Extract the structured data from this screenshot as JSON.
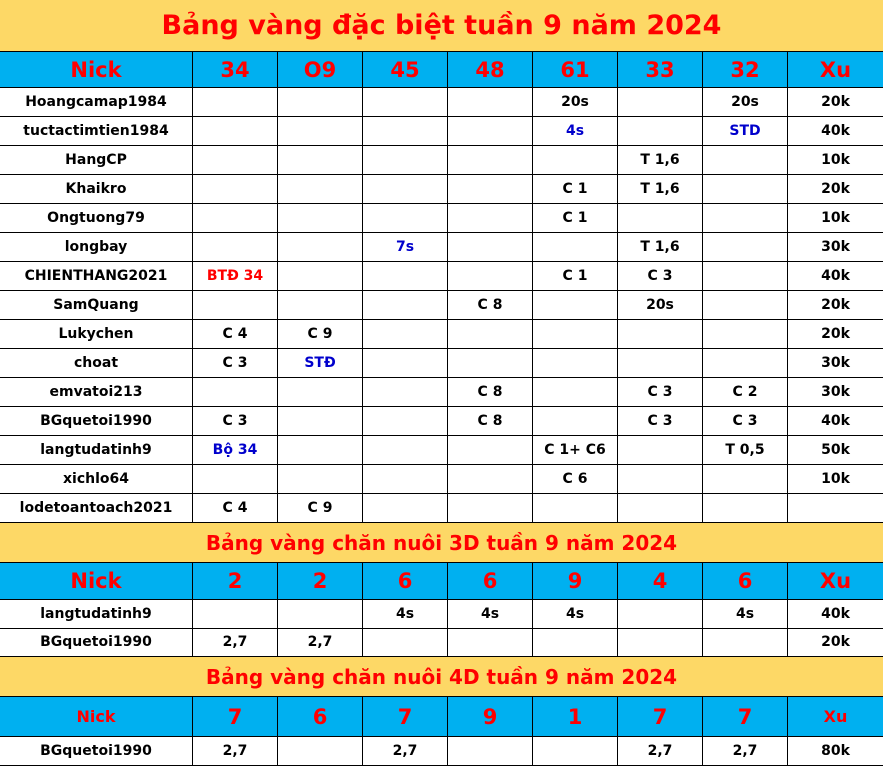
{
  "sections": [
    {
      "title": "Bảng vàng đặc biệt tuần 9 năm 2024",
      "header": [
        "Nick",
        "34",
        "O9",
        "45",
        "48",
        "61",
        "33",
        "32",
        "Xu"
      ],
      "rows": [
        [
          "Hoangcamap1984",
          "",
          "",
          "",
          "",
          "20s",
          "",
          "20s",
          "20k"
        ],
        [
          "tuctactimtien1984",
          "",
          "",
          "",
          "",
          "4s",
          "",
          "STD",
          "40k"
        ],
        [
          "HangCP",
          "",
          "",
          "",
          "",
          "",
          "T 1,6",
          "",
          "10k"
        ],
        [
          "Khaikro",
          "",
          "",
          "",
          "",
          "C 1",
          "T 1,6",
          "",
          "20k"
        ],
        [
          "Ongtuong79",
          "",
          "",
          "",
          "",
          "C 1",
          "",
          "",
          "10k"
        ],
        [
          "longbay",
          "",
          "",
          "7s",
          "",
          "",
          "T 1,6",
          "",
          "30k"
        ],
        [
          "CHIENTHANG2021",
          "BTĐ 34",
          "",
          "",
          "",
          "C 1",
          "C 3",
          "",
          "40k"
        ],
        [
          "SamQuang",
          "",
          "",
          "",
          "C 8",
          "",
          "20s",
          "",
          "20k"
        ],
        [
          "Lukychen",
          "C 4",
          "C 9",
          "",
          "",
          "",
          "",
          "",
          "20k"
        ],
        [
          "choat",
          "C 3",
          "STĐ",
          "",
          "",
          "",
          "",
          "",
          "30k"
        ],
        [
          "emvatoi213",
          "",
          "",
          "",
          "C 8",
          "",
          "C 3",
          "C 2",
          "30k"
        ],
        [
          "BGquetoi1990",
          "C 3",
          "",
          "",
          "C 8",
          "",
          "C 3",
          "C 3",
          "40k"
        ],
        [
          "langtudatinh9",
          "Bộ 34",
          "",
          "",
          "",
          "C 1+ C6",
          "",
          "T 0,5",
          "50k"
        ],
        [
          "xichlo64",
          "",
          "",
          "",
          "",
          "C 6",
          "",
          "",
          "10k"
        ],
        [
          "lodetoantoach2021",
          "C 4",
          "C 9",
          "",
          "",
          "",
          "",
          "",
          ""
        ]
      ]
    },
    {
      "title": "Bảng vàng chăn nuôi 3D tuần 9 năm 2024",
      "header": [
        "Nick",
        "2",
        "2",
        "6",
        "6",
        "9",
        "4",
        "6",
        "Xu"
      ],
      "rows": [
        [
          "langtudatinh9",
          "",
          "",
          "4s",
          "4s",
          "4s",
          "",
          "4s",
          "40k"
        ],
        [
          "BGquetoi1990",
          "2,7",
          "2,7",
          "",
          "",
          "",
          "",
          "",
          "20k"
        ]
      ]
    },
    {
      "title": "Bảng vàng chăn nuôi 4D tuần 9 năm 2024",
      "header": [
        "Nick",
        "7",
        "6",
        "7",
        "9",
        "1",
        "7",
        "7",
        "Xu"
      ],
      "rows": [
        [
          "BGquetoi1990",
          "2,7",
          "",
          "2,7",
          "",
          "",
          "2,7",
          "2,7",
          "80k"
        ]
      ]
    }
  ],
  "highlight": {
    "blue": [
      "4s|0|1",
      "STD|0|1",
      "7s|0|5",
      "STĐ|0|9",
      "Bộ 34|0|12"
    ],
    "red": [
      "BTĐ 34|0|6"
    ]
  },
  "colors": {
    "title_bg": "#fdd866",
    "header_bg": "#00b0f0",
    "title_text": "#ff0000",
    "blue_text": "#0000cc"
  }
}
